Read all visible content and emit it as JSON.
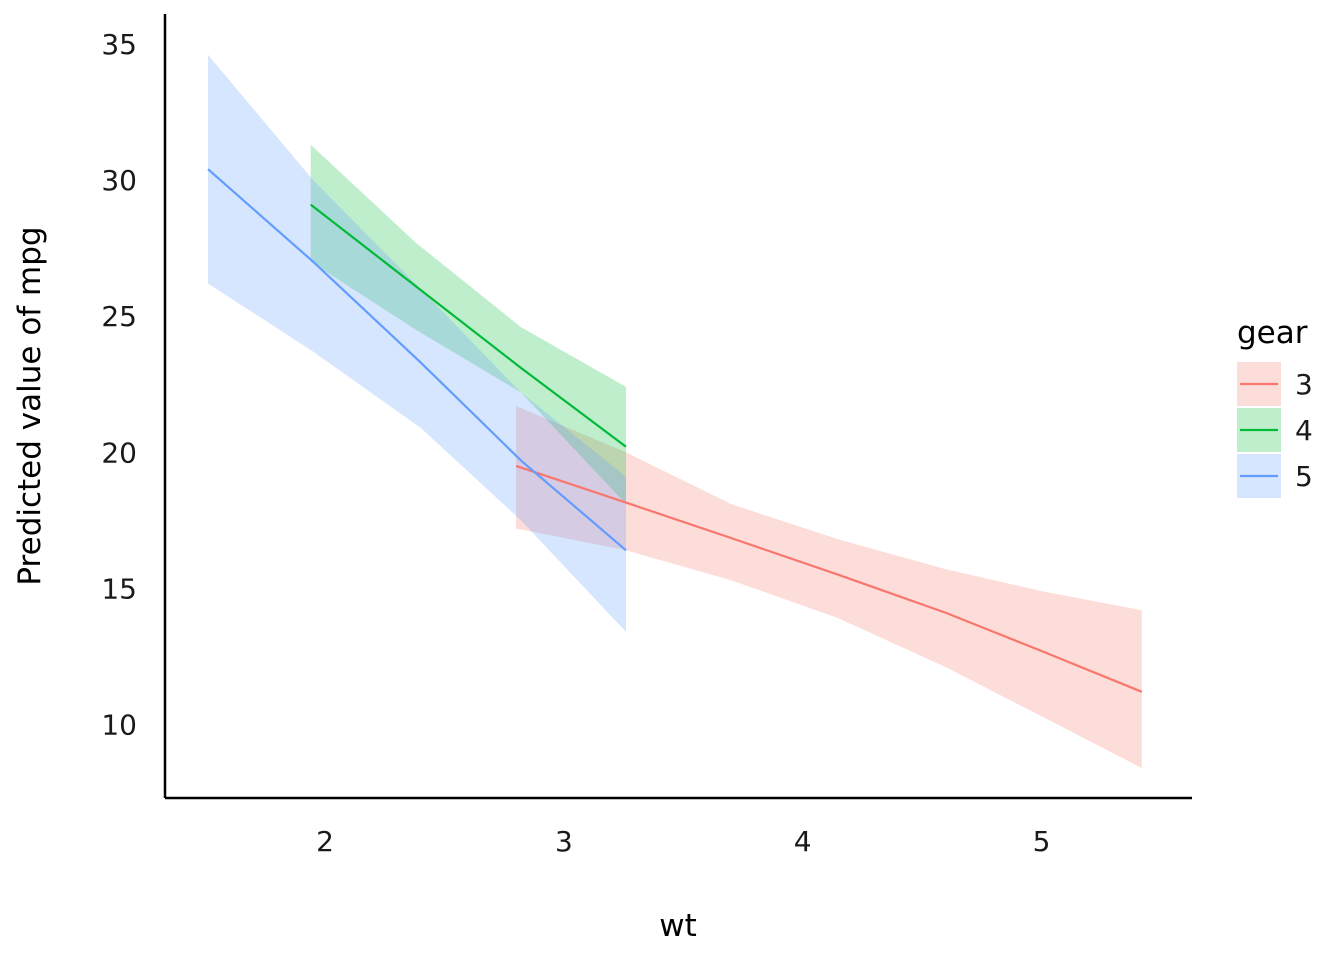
{
  "chart_data": {
    "type": "line",
    "xlabel": "wt",
    "ylabel": "Predicted value of mpg",
    "xlim": [
      1.33,
      5.63
    ],
    "ylim": [
      7.3,
      36.1
    ],
    "x_ticks": [
      2,
      3,
      4,
      5
    ],
    "y_ticks": [
      10,
      15,
      20,
      25,
      30,
      35
    ],
    "grid": false,
    "legend": {
      "title": "gear",
      "position": "right"
    },
    "band_opacity": 0.25,
    "series": [
      {
        "name": "3",
        "color": "#F8766D",
        "x": [
          2.8,
          3.26,
          3.7,
          4.15,
          4.6,
          5.0,
          5.42
        ],
        "y": [
          19.5,
          18.15,
          16.85,
          15.5,
          14.1,
          12.7,
          11.2
        ],
        "lower": [
          17.2,
          16.4,
          15.3,
          13.9,
          12.1,
          10.3,
          8.4
        ],
        "upper": [
          21.7,
          20.0,
          18.1,
          16.8,
          15.7,
          14.9,
          14.2
        ]
      },
      {
        "name": "4",
        "color": "#00BA38",
        "x": [
          1.94,
          2.38,
          2.82,
          3.26
        ],
        "y": [
          29.1,
          26.1,
          23.1,
          20.2
        ],
        "lower": [
          27.0,
          24.5,
          22.2,
          18.1
        ],
        "upper": [
          31.3,
          27.7,
          24.6,
          22.4
        ]
      },
      {
        "name": "5",
        "color": "#619CFF",
        "x": [
          1.51,
          1.95,
          2.4,
          2.82,
          3.26
        ],
        "y": [
          30.4,
          27.0,
          23.3,
          19.7,
          16.4
        ],
        "lower": [
          26.2,
          23.7,
          20.9,
          17.5,
          13.4
        ],
        "upper": [
          34.6,
          30.0,
          26.0,
          22.2,
          19.1
        ]
      }
    ]
  }
}
